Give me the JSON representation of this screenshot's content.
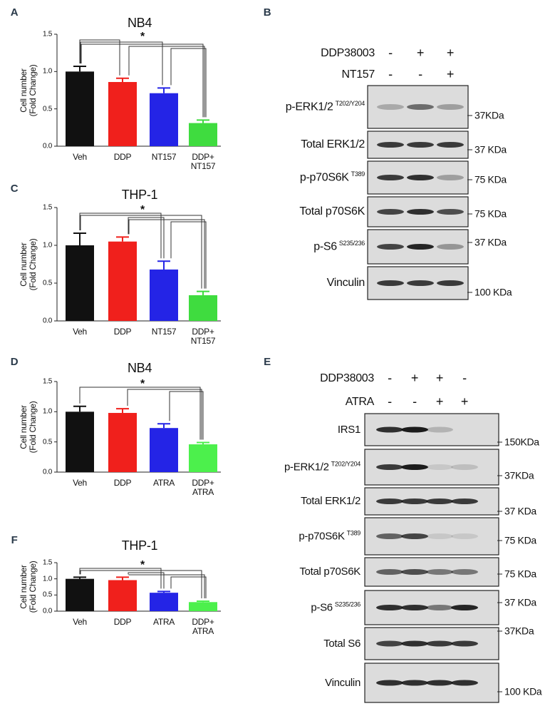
{
  "chart_data": [
    {
      "panel": "A",
      "type": "bar",
      "title": "NB4",
      "ylabel": "Cell number\n(Fold Change)",
      "categories": [
        "Veh",
        "DDP",
        "NT157",
        "DDP+\nNT157"
      ],
      "values": [
        1.0,
        0.86,
        0.71,
        0.31
      ],
      "errors": [
        0.07,
        0.05,
        0.07,
        0.04
      ],
      "colors": [
        "#111111",
        "#f0201c",
        "#2424e6",
        "#3fdc3f"
      ],
      "ylim": [
        0,
        1.5
      ],
      "yticks": [
        {
          "value": 0,
          "label": "0.0"
        },
        0.5,
        {
          "value": 1,
          "label": "1.0"
        },
        1.5
      ],
      "annotation": "*"
    },
    {
      "panel": "C",
      "type": "bar",
      "title": "THP-1",
      "ylabel": "Cell number\n(Fold Change)",
      "categories": [
        "Veh",
        "DDP",
        "NT157",
        "DDP+\nNT157"
      ],
      "values": [
        1.0,
        1.05,
        0.68,
        0.34
      ],
      "errors": [
        0.16,
        0.06,
        0.11,
        0.05
      ],
      "colors": [
        "#111111",
        "#f0201c",
        "#2424e6",
        "#3fdc3f"
      ],
      "ylim": [
        0,
        1.5
      ],
      "yticks": [
        {
          "value": 0,
          "label": "0.0"
        },
        0.5,
        {
          "value": 1,
          "label": "1.0"
        },
        1.5
      ],
      "annotation": "*"
    },
    {
      "panel": "D",
      "type": "bar",
      "title": "NB4",
      "ylabel": "Cell number\n(Fold Change)",
      "categories": [
        "Veh",
        "DDP",
        "ATRA",
        "DDP+\nATRA"
      ],
      "values": [
        1.0,
        0.98,
        0.73,
        0.46
      ],
      "errors": [
        0.09,
        0.07,
        0.07,
        0.03
      ],
      "colors": [
        "#111111",
        "#f0201c",
        "#2424e6",
        "#4cf04c"
      ],
      "ylim": [
        0,
        1.5
      ],
      "yticks": [
        {
          "value": 0,
          "label": "0.0"
        },
        0.5,
        {
          "value": 1,
          "label": "1.0"
        },
        1.5
      ],
      "annotation": "*"
    },
    {
      "panel": "F",
      "type": "bar",
      "title": "THP-1",
      "ylabel": "Cell number\n(Fold Change)",
      "categories": [
        "Veh",
        "DDP",
        "ATRA",
        "DDP+\nATRA"
      ],
      "values": [
        1.0,
        0.96,
        0.57,
        0.28
      ],
      "errors": [
        0.05,
        0.09,
        0.04,
        0.03
      ],
      "colors": [
        "#111111",
        "#f0201c",
        "#2424e6",
        "#4cf04c"
      ],
      "ylim": [
        0,
        1.5
      ],
      "yticks": [
        {
          "value": 0,
          "label": "0.0"
        },
        0.5,
        {
          "value": 1,
          "label": "1.0"
        },
        1.5
      ],
      "annotation": "*"
    }
  ],
  "blots": [
    {
      "panel": "B",
      "conditions": [
        {
          "name": "DDP38003",
          "signs": [
            "-",
            "+",
            "+"
          ]
        },
        {
          "name": "NT157",
          "signs": [
            "-",
            "-",
            "+"
          ]
        }
      ],
      "rows": [
        {
          "label": "p-ERK1/2",
          "superscript": "T202/Y204",
          "marker": "37KDa"
        },
        {
          "label": "Total ERK1/2",
          "marker": "37 KDa"
        },
        {
          "label": "p-p70S6K",
          "superscript": "T389",
          "marker": "75 KDa"
        },
        {
          "label": "Total p70S6K",
          "marker": "75 KDa"
        },
        {
          "label": "p-S6",
          "superscript": "S235/236",
          "marker": "37 KDa"
        },
        {
          "label": "Vinculin",
          "marker": "100 KDa"
        }
      ]
    },
    {
      "panel": "E",
      "conditions": [
        {
          "name": "DDP38003",
          "signs": [
            "-",
            "+",
            "+",
            "-"
          ]
        },
        {
          "name": "ATRA",
          "signs": [
            "-",
            "-",
            "+",
            "+"
          ]
        }
      ],
      "rows": [
        {
          "label": "IRS1",
          "marker": "150KDa"
        },
        {
          "label": "p-ERK1/2",
          "superscript": "T202/Y204",
          "marker": "37KDa"
        },
        {
          "label": "Total ERK1/2",
          "marker": "37 KDa"
        },
        {
          "label": "p-p70S6K",
          "superscript": "T389",
          "marker": "75 KDa"
        },
        {
          "label": "Total p70S6K",
          "marker": "75 KDa"
        },
        {
          "label": "p-S6",
          "superscript": "S235/236",
          "marker": "37 KDa"
        },
        {
          "label": "Total S6",
          "marker": "37KDa"
        },
        {
          "label": "Vinculin",
          "marker": "100 KDa"
        }
      ]
    }
  ]
}
